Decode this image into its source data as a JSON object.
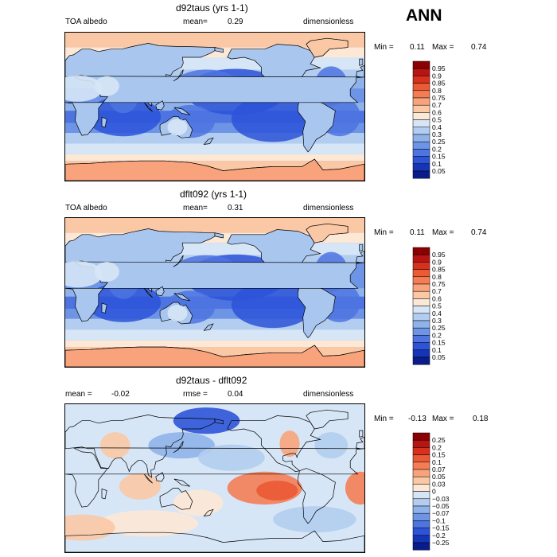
{
  "header": {
    "season": "ANN"
  },
  "panels": [
    {
      "title": "d92taus (yrs 1-1)",
      "left_label": "TOA albedo",
      "mean_label": "mean=",
      "mean_value": "0.29",
      "units": "dimensionless",
      "min_label": "Min =",
      "min_value": "0.11",
      "max_label": "Max =",
      "max_value": "0.74",
      "colorbar": {
        "levels": [
          "0.95",
          "0.9",
          "0.85",
          "0.8",
          "0.75",
          "0.7",
          "0.6",
          "0.5",
          "0.4",
          "0.3",
          "0.25",
          "0.2",
          "0.15",
          "0.1",
          "0.05"
        ],
        "colors": [
          "#8b0000",
          "#b81414",
          "#d8301c",
          "#ea5a34",
          "#f47d56",
          "#f8a37c",
          "#fbc8a6",
          "#fde8d6",
          "#d6e6f6",
          "#b2cdef",
          "#8fb2ea",
          "#6e94e6",
          "#4d74e0",
          "#2d54d8",
          "#1435b8",
          "#0a1c8a"
        ]
      },
      "map_style": "mean"
    },
    {
      "title": "dflt092 (yrs 1-1)",
      "left_label": "TOA albedo",
      "mean_label": "mean=",
      "mean_value": "0.31",
      "units": "dimensionless",
      "min_label": "Min =",
      "min_value": "0.11",
      "max_label": "Max =",
      "max_value": "0.74",
      "colorbar": {
        "levels": [
          "0.95",
          "0.9",
          "0.85",
          "0.8",
          "0.75",
          "0.7",
          "0.6",
          "0.5",
          "0.4",
          "0.3",
          "0.25",
          "0.2",
          "0.15",
          "0.1",
          "0.05"
        ],
        "colors": [
          "#8b0000",
          "#b81414",
          "#d8301c",
          "#ea5a34",
          "#f47d56",
          "#f8a37c",
          "#fbc8a6",
          "#fde8d6",
          "#d6e6f6",
          "#b2cdef",
          "#8fb2ea",
          "#6e94e6",
          "#4d74e0",
          "#2d54d8",
          "#1435b8",
          "#0a1c8a"
        ]
      },
      "map_style": "mean"
    },
    {
      "title": "d92taus - dflt092",
      "left_label": "mean =",
      "left_value": "-0.02",
      "mean_label": "rmse =",
      "mean_value": "0.04",
      "units": "dimensionless",
      "min_label": "Min =",
      "min_value": "-0.13",
      "max_label": "Max =",
      "max_value": "0.18",
      "colorbar": {
        "levels": [
          "0.25",
          "0.2",
          "0.15",
          "0.1",
          "0.07",
          "0.05",
          "0.03",
          "0",
          "-0.03",
          "-0.05",
          "-0.07",
          "-0.1",
          "-0.15",
          "-0.2",
          "-0.25"
        ],
        "colors": [
          "#8b0000",
          "#b81414",
          "#d8301c",
          "#ea5a34",
          "#f47d56",
          "#f8a37c",
          "#fbc8a6",
          "#fde8d6",
          "#d6e6f6",
          "#b2cdef",
          "#8fb2ea",
          "#6e94e6",
          "#4d74e0",
          "#2d54d8",
          "#1435b8",
          "#0a1c8a"
        ]
      },
      "map_style": "diff"
    }
  ],
  "chart_data": [
    {
      "type": "heatmap",
      "title": "d92taus (yrs 1-1)",
      "variable": "TOA albedo",
      "units": "dimensionless",
      "mean": 0.29,
      "min": 0.11,
      "max": 0.74,
      "contour_levels": [
        0.05,
        0.1,
        0.15,
        0.2,
        0.25,
        0.3,
        0.4,
        0.5,
        0.6,
        0.7,
        0.75,
        0.8,
        0.85,
        0.9,
        0.95
      ]
    },
    {
      "type": "heatmap",
      "title": "dflt092 (yrs 1-1)",
      "variable": "TOA albedo",
      "units": "dimensionless",
      "mean": 0.31,
      "min": 0.11,
      "max": 0.74,
      "contour_levels": [
        0.05,
        0.1,
        0.15,
        0.2,
        0.25,
        0.3,
        0.4,
        0.5,
        0.6,
        0.7,
        0.75,
        0.8,
        0.85,
        0.9,
        0.95
      ]
    },
    {
      "type": "heatmap",
      "title": "d92taus - dflt092",
      "units": "dimensionless",
      "mean": -0.02,
      "rmse": 0.04,
      "min": -0.13,
      "max": 0.18,
      "contour_levels": [
        -0.25,
        -0.2,
        -0.15,
        -0.1,
        -0.07,
        -0.05,
        -0.03,
        0,
        0.03,
        0.05,
        0.07,
        0.1,
        0.15,
        0.2,
        0.25
      ]
    }
  ]
}
